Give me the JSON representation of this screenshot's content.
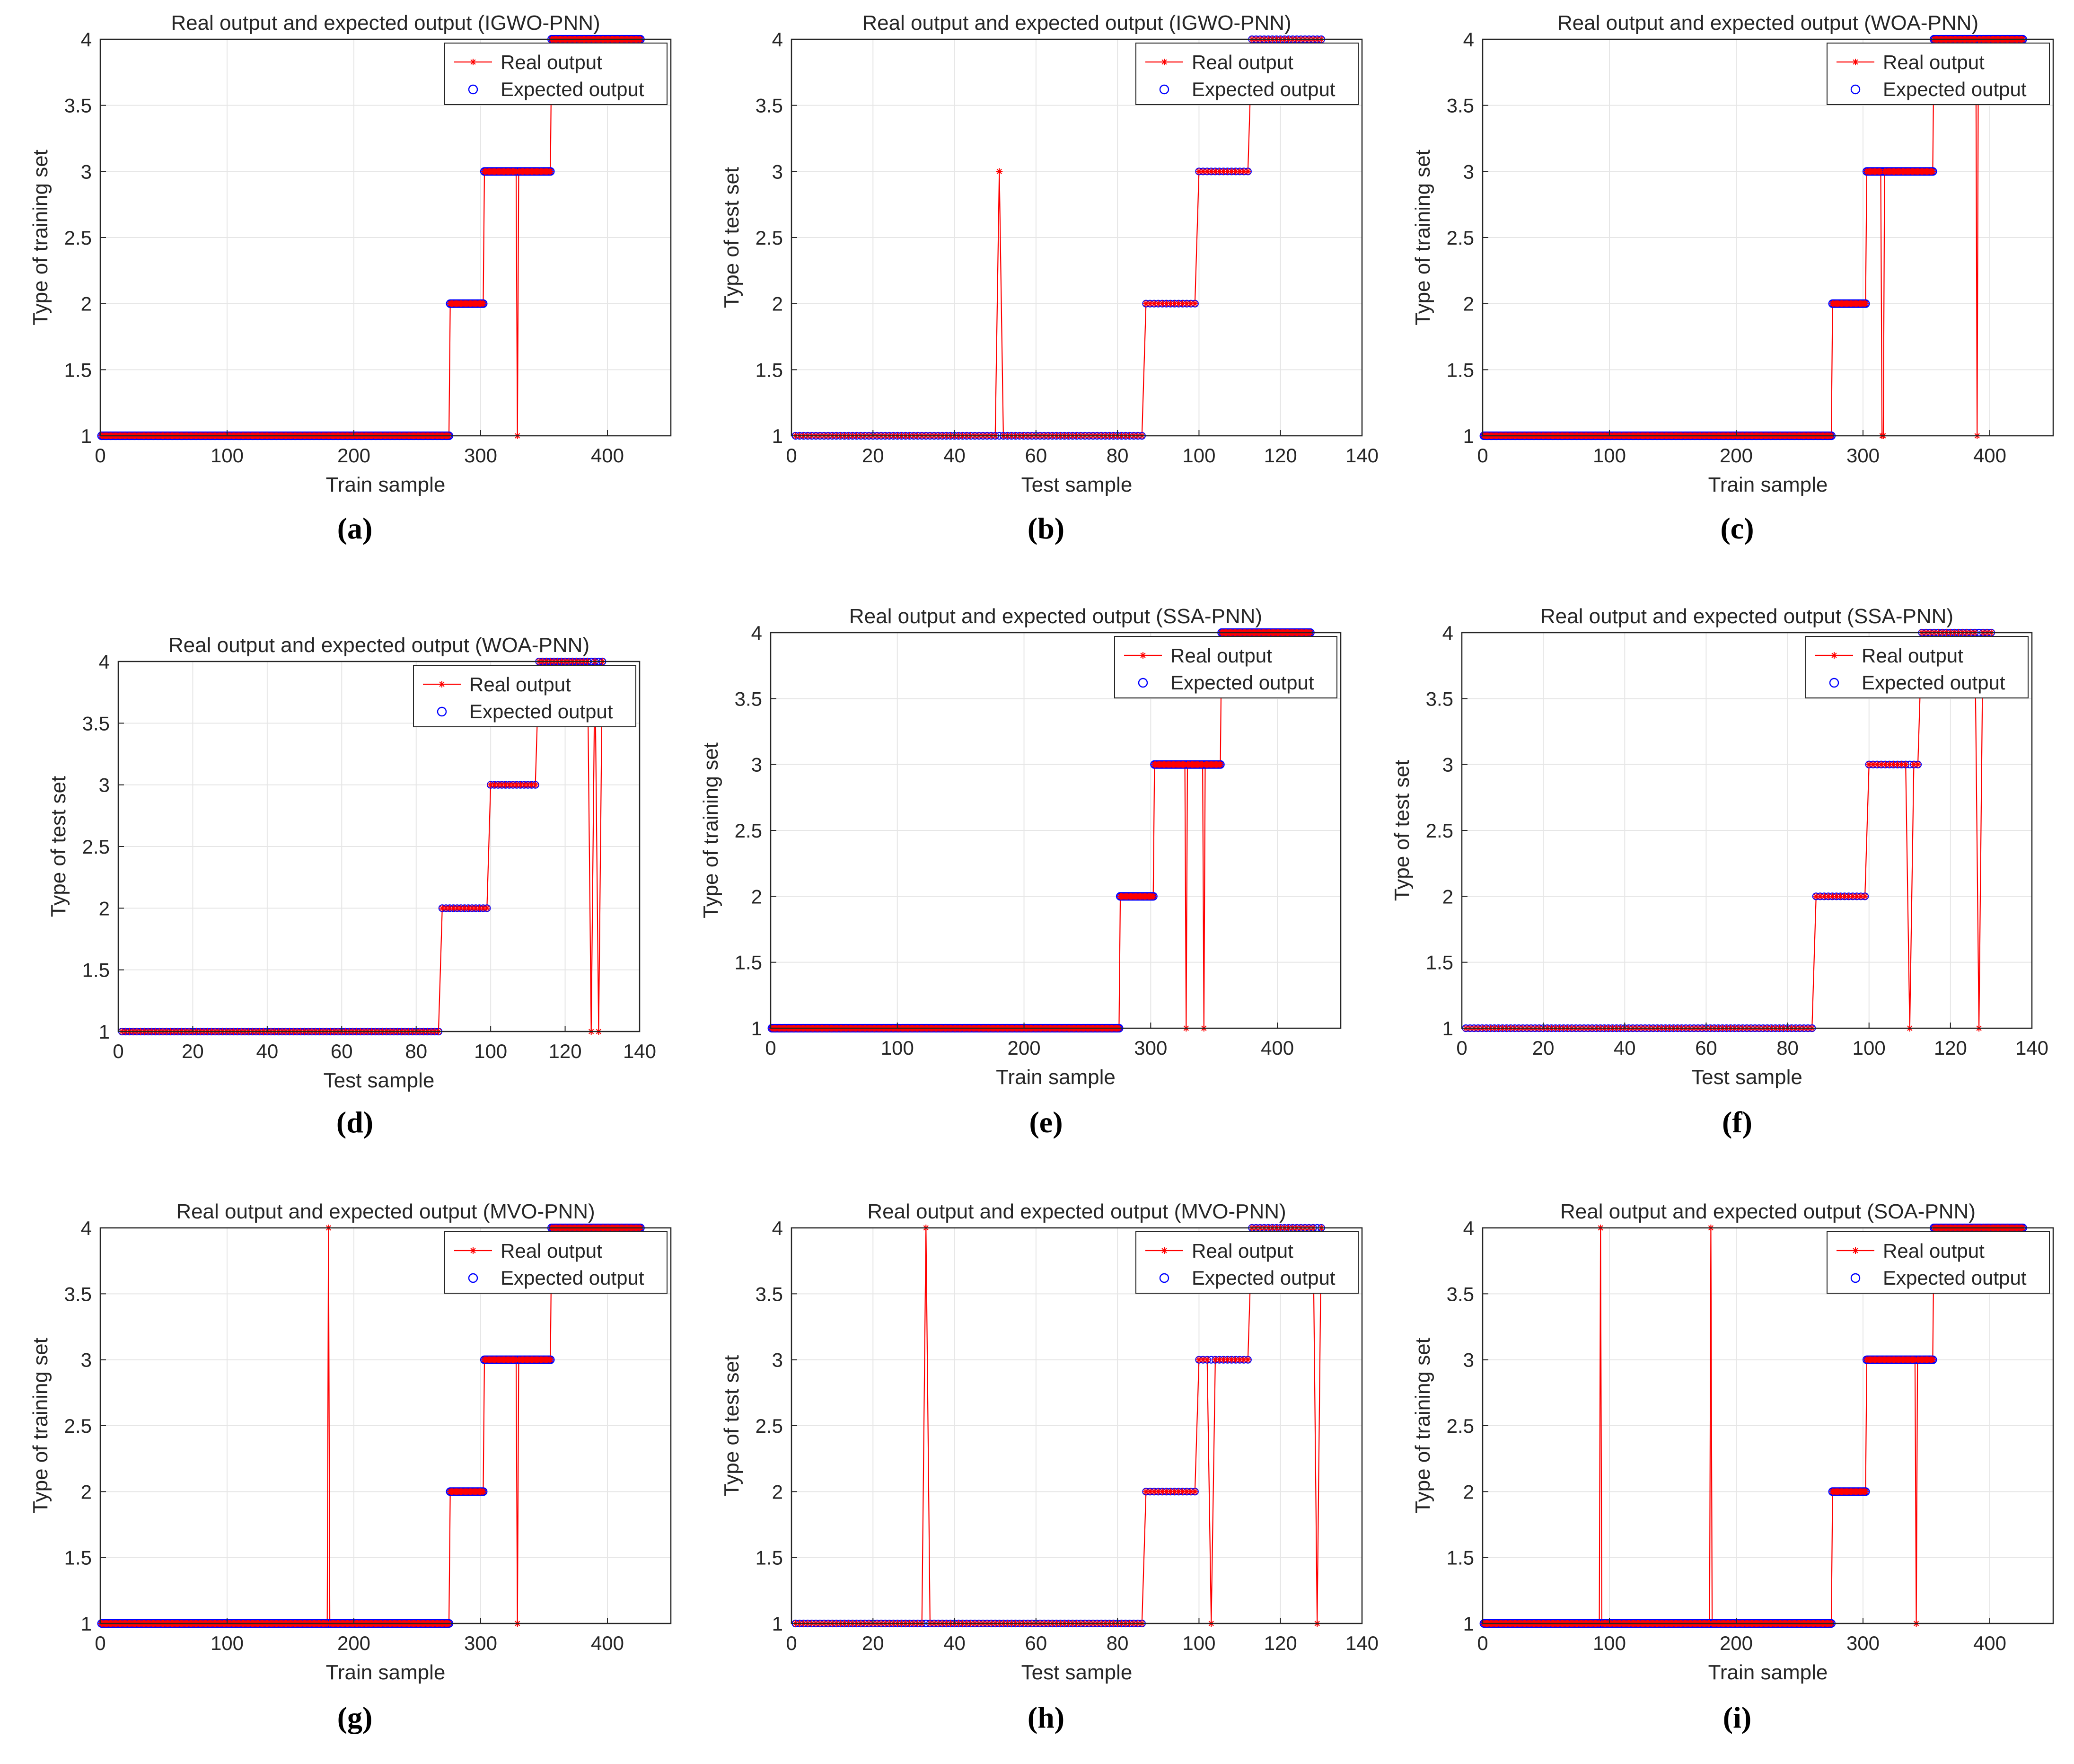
{
  "figure": {
    "captions": [
      "(a)",
      "(b)",
      "(c)",
      "(d)",
      "(e)",
      "(f)",
      "(g)",
      "(h)",
      "(i)"
    ]
  },
  "colors": {
    "real": "#ff0000",
    "expected": "#0000ff",
    "axis": "#262626",
    "grid": "#e6e6e6"
  },
  "chart_data": [
    {
      "type": "line",
      "title": "Real output and expected output (IGWO-PNN)",
      "xlabel": "Train sample",
      "ylabel": "Type of training set",
      "xlim": [
        0,
        450
      ],
      "ylim": [
        1,
        4
      ],
      "xticks": [
        0,
        100,
        200,
        300,
        400
      ],
      "yticks": [
        1,
        1.5,
        2,
        2.5,
        3,
        3.5,
        4
      ],
      "legend": {
        "position": "top-right",
        "entries": [
          "Real output",
          "Expected output"
        ]
      },
      "n_samples": 426,
      "class_ranges": [
        [
          1,
          275,
          1
        ],
        [
          276,
          302,
          2
        ],
        [
          303,
          355,
          3
        ],
        [
          356,
          426,
          4
        ]
      ],
      "real_errors": [
        [
          329,
          1
        ]
      ]
    },
    {
      "type": "line",
      "title": "Real output and expected output (IGWO-PNN)",
      "xlabel": "Test sample",
      "ylabel": "Type of test set",
      "xlim": [
        0,
        140
      ],
      "ylim": [
        1,
        4
      ],
      "xticks": [
        0,
        20,
        40,
        60,
        80,
        100,
        120,
        140
      ],
      "yticks": [
        1,
        1.5,
        2,
        2.5,
        3,
        3.5,
        4
      ],
      "legend": {
        "position": "top-right",
        "entries": [
          "Real output",
          "Expected output"
        ]
      },
      "n_samples": 130,
      "class_ranges": [
        [
          1,
          86,
          1
        ],
        [
          87,
          99,
          2
        ],
        [
          100,
          112,
          3
        ],
        [
          113,
          130,
          4
        ]
      ],
      "real_errors": [
        [
          51,
          3
        ]
      ]
    },
    {
      "type": "line",
      "title": "Real output and expected output (WOA-PNN)",
      "xlabel": "Train sample",
      "ylabel": "Type of training set",
      "xlim": [
        0,
        450
      ],
      "ylim": [
        1,
        4
      ],
      "xticks": [
        0,
        100,
        200,
        300,
        400
      ],
      "yticks": [
        1,
        1.5,
        2,
        2.5,
        3,
        3.5,
        4
      ],
      "legend": {
        "position": "top-right",
        "entries": [
          "Real output",
          "Expected output"
        ]
      },
      "n_samples": 426,
      "class_ranges": [
        [
          1,
          275,
          1
        ],
        [
          276,
          302,
          2
        ],
        [
          303,
          355,
          3
        ],
        [
          356,
          426,
          4
        ]
      ],
      "real_errors": [
        [
          315,
          1
        ],
        [
          316,
          1
        ],
        [
          390,
          1
        ]
      ]
    },
    {
      "type": "line",
      "title": "Real output and expected output (WOA-PNN)",
      "xlabel": "Test sample",
      "ylabel": "Type of test set",
      "xlim": [
        0,
        140
      ],
      "ylim": [
        1,
        4
      ],
      "xticks": [
        0,
        20,
        40,
        60,
        80,
        100,
        120,
        140
      ],
      "yticks": [
        1,
        1.5,
        2,
        2.5,
        3,
        3.5,
        4
      ],
      "legend": {
        "position": "top-right",
        "entries": [
          "Real output",
          "Expected output"
        ]
      },
      "n_samples": 130,
      "class_ranges": [
        [
          1,
          86,
          1
        ],
        [
          87,
          99,
          2
        ],
        [
          100,
          112,
          3
        ],
        [
          113,
          130,
          4
        ]
      ],
      "real_errors": [
        [
          127,
          1
        ],
        [
          129,
          1
        ]
      ]
    },
    {
      "type": "line",
      "title": "Real output and expected output (SSA-PNN)",
      "xlabel": "Train sample",
      "ylabel": "Type of training set",
      "xlim": [
        0,
        450
      ],
      "ylim": [
        1,
        4
      ],
      "xticks": [
        0,
        100,
        200,
        300,
        400
      ],
      "yticks": [
        1,
        1.5,
        2,
        2.5,
        3,
        3.5,
        4
      ],
      "legend": {
        "position": "top-right",
        "entries": [
          "Real output",
          "Expected output"
        ]
      },
      "n_samples": 426,
      "class_ranges": [
        [
          1,
          275,
          1
        ],
        [
          276,
          302,
          2
        ],
        [
          303,
          355,
          3
        ],
        [
          356,
          426,
          4
        ]
      ],
      "real_errors": [
        [
          328,
          1
        ],
        [
          342,
          1
        ]
      ]
    },
    {
      "type": "line",
      "title": "Real output and expected output (SSA-PNN)",
      "xlabel": "Test sample",
      "ylabel": "Type of test set",
      "xlim": [
        0,
        140
      ],
      "ylim": [
        1,
        4
      ],
      "xticks": [
        0,
        20,
        40,
        60,
        80,
        100,
        120,
        140
      ],
      "yticks": [
        1,
        1.5,
        2,
        2.5,
        3,
        3.5,
        4
      ],
      "legend": {
        "position": "top-right",
        "entries": [
          "Real output",
          "Expected output"
        ]
      },
      "n_samples": 130,
      "class_ranges": [
        [
          1,
          86,
          1
        ],
        [
          87,
          99,
          2
        ],
        [
          100,
          112,
          3
        ],
        [
          113,
          130,
          4
        ]
      ],
      "real_errors": [
        [
          110,
          1
        ],
        [
          127,
          1
        ]
      ]
    },
    {
      "type": "line",
      "title": "Real output and expected output (MVO-PNN)",
      "xlabel": "Train sample",
      "ylabel": "Type of training set",
      "xlim": [
        0,
        450
      ],
      "ylim": [
        1,
        4
      ],
      "xticks": [
        0,
        100,
        200,
        300,
        400
      ],
      "yticks": [
        1,
        1.5,
        2,
        2.5,
        3,
        3.5,
        4
      ],
      "legend": {
        "position": "top-right",
        "entries": [
          "Real output",
          "Expected output"
        ]
      },
      "n_samples": 426,
      "class_ranges": [
        [
          1,
          275,
          1
        ],
        [
          276,
          302,
          2
        ],
        [
          303,
          355,
          3
        ],
        [
          356,
          426,
          4
        ]
      ],
      "real_errors": [
        [
          180,
          4
        ],
        [
          329,
          1
        ]
      ]
    },
    {
      "type": "line",
      "title": "Real output and expected output (MVO-PNN)",
      "xlabel": "Test sample",
      "ylabel": "Type of test set",
      "xlim": [
        0,
        140
      ],
      "ylim": [
        1,
        4
      ],
      "xticks": [
        0,
        20,
        40,
        60,
        80,
        100,
        120,
        140
      ],
      "yticks": [
        1,
        1.5,
        2,
        2.5,
        3,
        3.5,
        4
      ],
      "legend": {
        "position": "top-right",
        "entries": [
          "Real output",
          "Expected output"
        ]
      },
      "n_samples": 130,
      "class_ranges": [
        [
          1,
          86,
          1
        ],
        [
          87,
          99,
          2
        ],
        [
          100,
          112,
          3
        ],
        [
          113,
          130,
          4
        ]
      ],
      "real_errors": [
        [
          33,
          4
        ],
        [
          103,
          1
        ],
        [
          129,
          1
        ]
      ]
    },
    {
      "type": "line",
      "title": "Real output and expected output (SOA-PNN)",
      "xlabel": "Train sample",
      "ylabel": "Type of training set",
      "xlim": [
        0,
        450
      ],
      "ylim": [
        1,
        4
      ],
      "xticks": [
        0,
        100,
        200,
        300,
        400
      ],
      "yticks": [
        1,
        1.5,
        2,
        2.5,
        3,
        3.5,
        4
      ],
      "legend": {
        "position": "top-right",
        "entries": [
          "Real output",
          "Expected output"
        ]
      },
      "n_samples": 426,
      "class_ranges": [
        [
          1,
          275,
          1
        ],
        [
          276,
          302,
          2
        ],
        [
          303,
          355,
          3
        ],
        [
          356,
          426,
          4
        ]
      ],
      "real_errors": [
        [
          93,
          4
        ],
        [
          180,
          4
        ],
        [
          342,
          1
        ]
      ]
    }
  ]
}
